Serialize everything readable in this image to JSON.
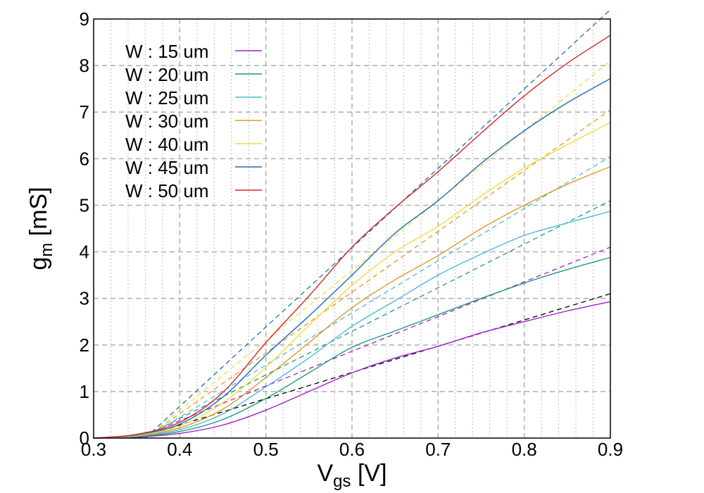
{
  "chart_data": {
    "type": "line",
    "title": "",
    "xlabel": {
      "main": "V",
      "sub": "gs",
      "unit": " [V]"
    },
    "ylabel": {
      "main": "g",
      "sub": "m",
      "unit": " [mS]"
    },
    "xlim": [
      0.3,
      0.9
    ],
    "ylim": [
      0,
      9
    ],
    "x_ticks": [
      "0.3",
      "0.4",
      "0.5",
      "0.6",
      "0.7",
      "0.8",
      "0.9"
    ],
    "y_ticks": [
      "0",
      "1",
      "2",
      "3",
      "4",
      "5",
      "6",
      "7",
      "8",
      "9"
    ],
    "x_minor_step": 0.02,
    "grid": true,
    "legend_position": "top-left",
    "series": [
      {
        "name": "W : 15 um",
        "color": "#a020c8",
        "x": [
          0.3,
          0.35,
          0.4,
          0.45,
          0.5,
          0.55,
          0.6,
          0.65,
          0.7,
          0.75,
          0.8,
          0.85,
          0.9
        ],
        "y": [
          0.0,
          0.02,
          0.1,
          0.28,
          0.6,
          1.0,
          1.4,
          1.72,
          1.97,
          2.26,
          2.5,
          2.73,
          2.93
        ]
      },
      {
        "name": "W : 20 um",
        "color": "#1e9a7a",
        "x": [
          0.3,
          0.35,
          0.4,
          0.45,
          0.5,
          0.55,
          0.6,
          0.65,
          0.7,
          0.75,
          0.8,
          0.85,
          0.9
        ],
        "y": [
          0.0,
          0.03,
          0.14,
          0.4,
          0.85,
          1.4,
          1.95,
          2.3,
          2.65,
          3.0,
          3.33,
          3.62,
          3.88
        ]
      },
      {
        "name": "W : 25 um",
        "color": "#4fb8dc",
        "x": [
          0.3,
          0.35,
          0.4,
          0.45,
          0.5,
          0.55,
          0.6,
          0.65,
          0.7,
          0.75,
          0.8,
          0.85,
          0.9
        ],
        "y": [
          0.0,
          0.04,
          0.18,
          0.52,
          1.1,
          1.72,
          2.4,
          2.95,
          3.5,
          3.95,
          4.35,
          4.62,
          4.87
        ]
      },
      {
        "name": "W : 30 um",
        "color": "#e09a28",
        "x": [
          0.3,
          0.35,
          0.4,
          0.45,
          0.5,
          0.55,
          0.6,
          0.65,
          0.7,
          0.75,
          0.8,
          0.85,
          0.9
        ],
        "y": [
          0.0,
          0.05,
          0.22,
          0.62,
          1.3,
          2.05,
          2.8,
          3.4,
          3.92,
          4.5,
          5.0,
          5.45,
          5.83
        ]
      },
      {
        "name": "W : 40 um",
        "color": "#f2dc40",
        "x": [
          0.3,
          0.35,
          0.4,
          0.45,
          0.5,
          0.55,
          0.6,
          0.65,
          0.7,
          0.75,
          0.8,
          0.85,
          0.9
        ],
        "y": [
          0.0,
          0.06,
          0.26,
          0.76,
          1.52,
          2.42,
          3.28,
          4.0,
          4.55,
          5.2,
          5.8,
          6.3,
          6.78
        ]
      },
      {
        "name": "W : 45 um",
        "color": "#1a6eb8",
        "x": [
          0.3,
          0.35,
          0.4,
          0.45,
          0.5,
          0.55,
          0.6,
          0.65,
          0.7,
          0.75,
          0.8,
          0.85,
          0.9
        ],
        "y": [
          0.0,
          0.07,
          0.3,
          0.88,
          1.78,
          2.62,
          3.5,
          4.4,
          5.1,
          5.9,
          6.6,
          7.2,
          7.72
        ]
      },
      {
        "name": "W : 50 um",
        "color": "#d42828",
        "x": [
          0.3,
          0.35,
          0.4,
          0.45,
          0.5,
          0.55,
          0.6,
          0.65,
          0.7,
          0.75,
          0.8,
          0.85,
          0.9
        ],
        "y": [
          0.0,
          0.08,
          0.34,
          0.98,
          2.05,
          3.05,
          4.1,
          4.95,
          5.72,
          6.55,
          7.35,
          8.05,
          8.65
        ]
      }
    ],
    "tangent_lines": [
      {
        "color": "#000000",
        "x": [
          0.35,
          0.9
        ],
        "y": [
          0.0,
          3.1
        ]
      },
      {
        "color": "#a020c8",
        "x": [
          0.35,
          0.9
        ],
        "y": [
          0.0,
          4.1
        ]
      },
      {
        "color": "#1e9a7a",
        "x": [
          0.355,
          0.9
        ],
        "y": [
          0.0,
          5.1
        ]
      },
      {
        "color": "#4fb8dc",
        "x": [
          0.36,
          0.9
        ],
        "y": [
          0.0,
          6.05
        ]
      },
      {
        "color": "#e09a28",
        "x": [
          0.36,
          0.9
        ],
        "y": [
          0.0,
          7.05
        ]
      },
      {
        "color": "#f2dc40",
        "x": [
          0.36,
          0.9
        ],
        "y": [
          0.0,
          8.1
        ]
      },
      {
        "color": "#1a6eb8",
        "x": [
          0.36,
          0.9
        ],
        "y": [
          0.0,
          9.2
        ]
      }
    ]
  }
}
